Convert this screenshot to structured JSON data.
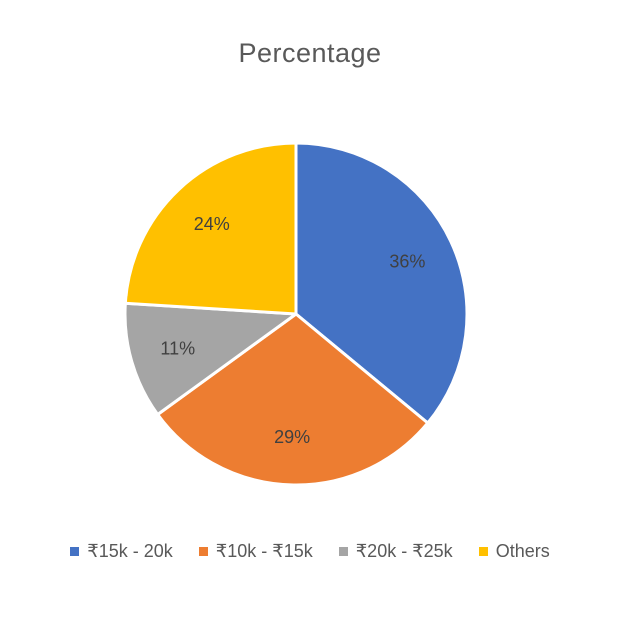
{
  "chart_data": {
    "type": "pie",
    "title": "Percentage",
    "categories": [
      "₹15k - 20k",
      "₹10k - ₹15k",
      "₹20k - ₹25k",
      "Others"
    ],
    "values": [
      36,
      29,
      11,
      24
    ],
    "data_labels": [
      "36%",
      "29%",
      "11%",
      "24%"
    ],
    "colors": [
      "#4472C4",
      "#ED7D31",
      "#A5A5A5",
      "#FFC000"
    ],
    "start_angle_deg": 0,
    "direction": "clockwise",
    "legend_position": "bottom"
  }
}
